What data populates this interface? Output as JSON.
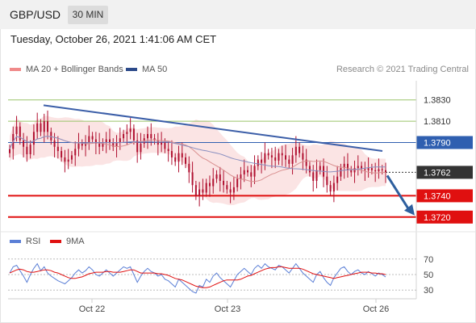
{
  "header": {
    "symbol": "GBP/USD",
    "timeframe": "30 MIN"
  },
  "datetime": "Tuesday, October 26, 2021 1:41:06 AM CET",
  "legend": {
    "ma20": {
      "label": "MA 20 + Bollinger Bands",
      "color": "#f08a8a"
    },
    "ma50": {
      "label": "MA 50",
      "color": "#2c4a8a"
    }
  },
  "credit": "Research © 2021 Trading Central",
  "rsi_legend": {
    "rsi": {
      "label": "RSI",
      "color": "#5b7fd6"
    },
    "ma9": {
      "label": "9MA",
      "color": "#e01010"
    }
  },
  "colors": {
    "resistance": "#9ac46a",
    "pivot": "#2f5fb0",
    "support": "#e01010",
    "current": "#333333",
    "candle": "#b01030",
    "trendline": "#3b5ea8",
    "arrow": "#2e5f9e",
    "band_fill": "#fbe1e1",
    "ma20_line": "#d99090",
    "ma50_line": "#8a8fc0"
  },
  "chart_data": [
    {
      "type": "candlestick",
      "title": "GBP/USD 30 MIN",
      "x_ticks": [
        "Oct 22",
        "Oct 23",
        "Oct 26"
      ],
      "ylim": [
        1.371,
        1.3848
      ],
      "current_price": {
        "label": "1.3762",
        "value": 1.3762
      },
      "levels": [
        {
          "label": "1.3830",
          "value": 1.383,
          "kind": "resistance"
        },
        {
          "label": "1.3810",
          "value": 1.381,
          "kind": "resistance"
        },
        {
          "label": "1.3790",
          "value": 1.379,
          "kind": "pivot"
        },
        {
          "label": "1.3740",
          "value": 1.374,
          "kind": "support"
        },
        {
          "label": "1.3720",
          "value": 1.372,
          "kind": "support"
        }
      ],
      "trendline": {
        "start": 1.3825,
        "end": 1.3782
      },
      "price_series": [
        1.3784,
        1.3798,
        1.3805,
        1.3792,
        1.3786,
        1.3779,
        1.3788,
        1.38,
        1.3808,
        1.38,
        1.381,
        1.38,
        1.3792,
        1.3786,
        1.3782,
        1.3776,
        1.3772,
        1.3774,
        1.3778,
        1.3784,
        1.3789,
        1.3787,
        1.379,
        1.3796,
        1.3793,
        1.3789,
        1.3786,
        1.379,
        1.3793,
        1.379,
        1.3786,
        1.379,
        1.3794,
        1.3798,
        1.38,
        1.3803,
        1.3792,
        1.3781,
        1.3789,
        1.3794,
        1.3798,
        1.3794,
        1.3792,
        1.3788,
        1.379,
        1.3784,
        1.3782,
        1.3776,
        1.3772,
        1.378,
        1.3776,
        1.377,
        1.3762,
        1.375,
        1.374,
        1.3746,
        1.3743,
        1.3752,
        1.3749,
        1.3756,
        1.376,
        1.3754,
        1.375,
        1.3746,
        1.3743,
        1.3748,
        1.3756,
        1.376,
        1.3764,
        1.3762,
        1.3758,
        1.3768,
        1.3774,
        1.3771,
        1.378,
        1.3778,
        1.3776,
        1.3773,
        1.378,
        1.3778,
        1.3774,
        1.377,
        1.3778,
        1.3786,
        1.378,
        1.3774,
        1.3768,
        1.3762,
        1.3754,
        1.3764,
        1.3768,
        1.3758,
        1.375,
        1.3744,
        1.3752,
        1.3758,
        1.3766,
        1.377,
        1.3764,
        1.3762,
        1.3766,
        1.3768,
        1.3765,
        1.3764,
        1.3766,
        1.3764,
        1.3763,
        1.3765,
        1.3764,
        1.3762
      ],
      "forecast": {
        "from": 1.3762,
        "to": 1.372
      }
    },
    {
      "type": "line",
      "title": "RSI",
      "ylim": [
        25,
        75
      ],
      "y_ticks": [
        70,
        50,
        30
      ],
      "y_tick_labels": [
        "70",
        "50",
        "30"
      ],
      "series": [
        {
          "name": "RSI",
          "values": [
            52,
            60,
            62,
            55,
            48,
            40,
            50,
            58,
            64,
            55,
            60,
            52,
            48,
            45,
            42,
            40,
            38,
            42,
            46,
            52,
            56,
            52,
            55,
            60,
            56,
            50,
            48,
            52,
            56,
            52,
            48,
            52,
            56,
            60,
            58,
            60,
            50,
            40,
            48,
            54,
            58,
            54,
            52,
            48,
            50,
            44,
            42,
            38,
            34,
            44,
            40,
            36,
            32,
            28,
            26,
            36,
            34,
            44,
            40,
            48,
            52,
            46,
            42,
            38,
            34,
            42,
            50,
            54,
            58,
            54,
            50,
            58,
            62,
            58,
            64,
            60,
            58,
            56,
            62,
            60,
            56,
            52,
            58,
            64,
            58,
            52,
            48,
            44,
            40,
            50,
            54,
            46,
            40,
            36,
            46,
            52,
            58,
            60,
            54,
            50,
            54,
            56,
            52,
            50,
            54,
            51,
            48,
            52,
            50,
            47
          ]
        },
        {
          "name": "9MA",
          "values": [
            52,
            54,
            56,
            57,
            56,
            54,
            53,
            53,
            54,
            55,
            56,
            56,
            55,
            53,
            52,
            50,
            48,
            46,
            45,
            45,
            46,
            47,
            49,
            51,
            52,
            53,
            53,
            53,
            54,
            54,
            53,
            53,
            53,
            54,
            55,
            56,
            56,
            54,
            52,
            52,
            52,
            52,
            52,
            51,
            51,
            50,
            49,
            47,
            45,
            44,
            43,
            41,
            39,
            37,
            35,
            34,
            33,
            33,
            34,
            36,
            38,
            40,
            42,
            43,
            43,
            43,
            43,
            44,
            46,
            48,
            49,
            51,
            53,
            55,
            57,
            58,
            59,
            59,
            60,
            60,
            59,
            58,
            58,
            58,
            58,
            57,
            55,
            53,
            51,
            50,
            49,
            48,
            47,
            46,
            45,
            46,
            47,
            48,
            49,
            50,
            51,
            52,
            53,
            53,
            53,
            52,
            52,
            51,
            51,
            50
          ]
        }
      ]
    }
  ]
}
